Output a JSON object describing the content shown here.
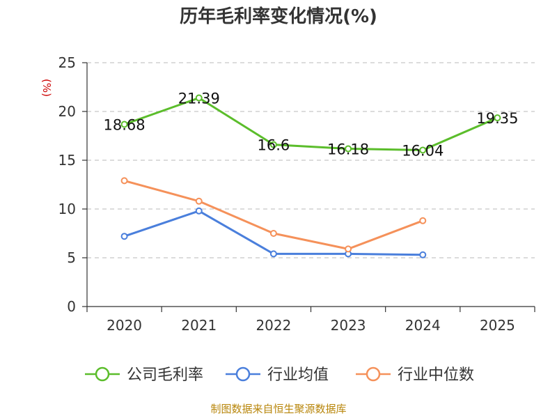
{
  "chart_data": {
    "type": "line",
    "title": "历年毛利率变化情况(%)",
    "unit": "(%)",
    "categories": [
      "2020",
      "2021",
      "2022",
      "2023",
      "2024",
      "2025"
    ],
    "ylim": [
      0,
      25
    ],
    "yticks": [
      "0",
      "5",
      "10",
      "15",
      "20",
      "25"
    ],
    "grid": true,
    "legend_position": "bottom",
    "series": [
      {
        "name": "公司毛利率",
        "color": "#5bbd2b",
        "values": [
          18.68,
          21.39,
          16.6,
          16.18,
          16.04,
          19.35
        ],
        "labels": [
          "18.68",
          "21.39",
          "16.6",
          "16.18",
          "16.04",
          "19.35"
        ]
      },
      {
        "name": "行业均值",
        "color": "#4a7fdc",
        "values": [
          7.2,
          9.8,
          5.4,
          5.4,
          5.3,
          null
        ]
      },
      {
        "name": "行业中位数",
        "color": "#f5915a",
        "values": [
          12.9,
          10.8,
          7.5,
          5.9,
          8.8,
          null
        ]
      }
    ]
  },
  "source": "制图数据来自恒生聚源数据库"
}
